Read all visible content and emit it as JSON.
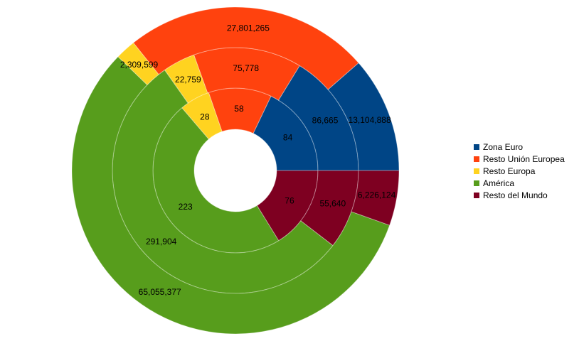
{
  "chart_data": {
    "type": "pie",
    "subtype": "multi-ring donut",
    "categories": [
      "Zona Euro",
      "Resto Unión Europea",
      "Resto Europa",
      "América",
      "Resto del Mundo"
    ],
    "colors": [
      "#004586",
      "#ff420e",
      "#ffd320",
      "#579d1c",
      "#7e0021"
    ],
    "series": [
      {
        "values": [
          84,
          58,
          28,
          223,
          76
        ],
        "labels": [
          "84",
          "58",
          "28",
          "223",
          "76"
        ]
      },
      {
        "values": [
          86665,
          75778,
          22759,
          291904,
          55640
        ],
        "labels": [
          "86,665",
          "75,778",
          "22,759",
          "291,904",
          "55,640"
        ]
      },
      {
        "values": [
          13104888,
          27801265,
          2309599,
          65055377,
          6226124
        ],
        "labels": [
          "13,104,888",
          "27,801,265",
          "2,309,599",
          "65,055,377",
          "6,226,124"
        ]
      }
    ],
    "legend": "right",
    "title": "",
    "xlabel": "",
    "ylabel": ""
  }
}
